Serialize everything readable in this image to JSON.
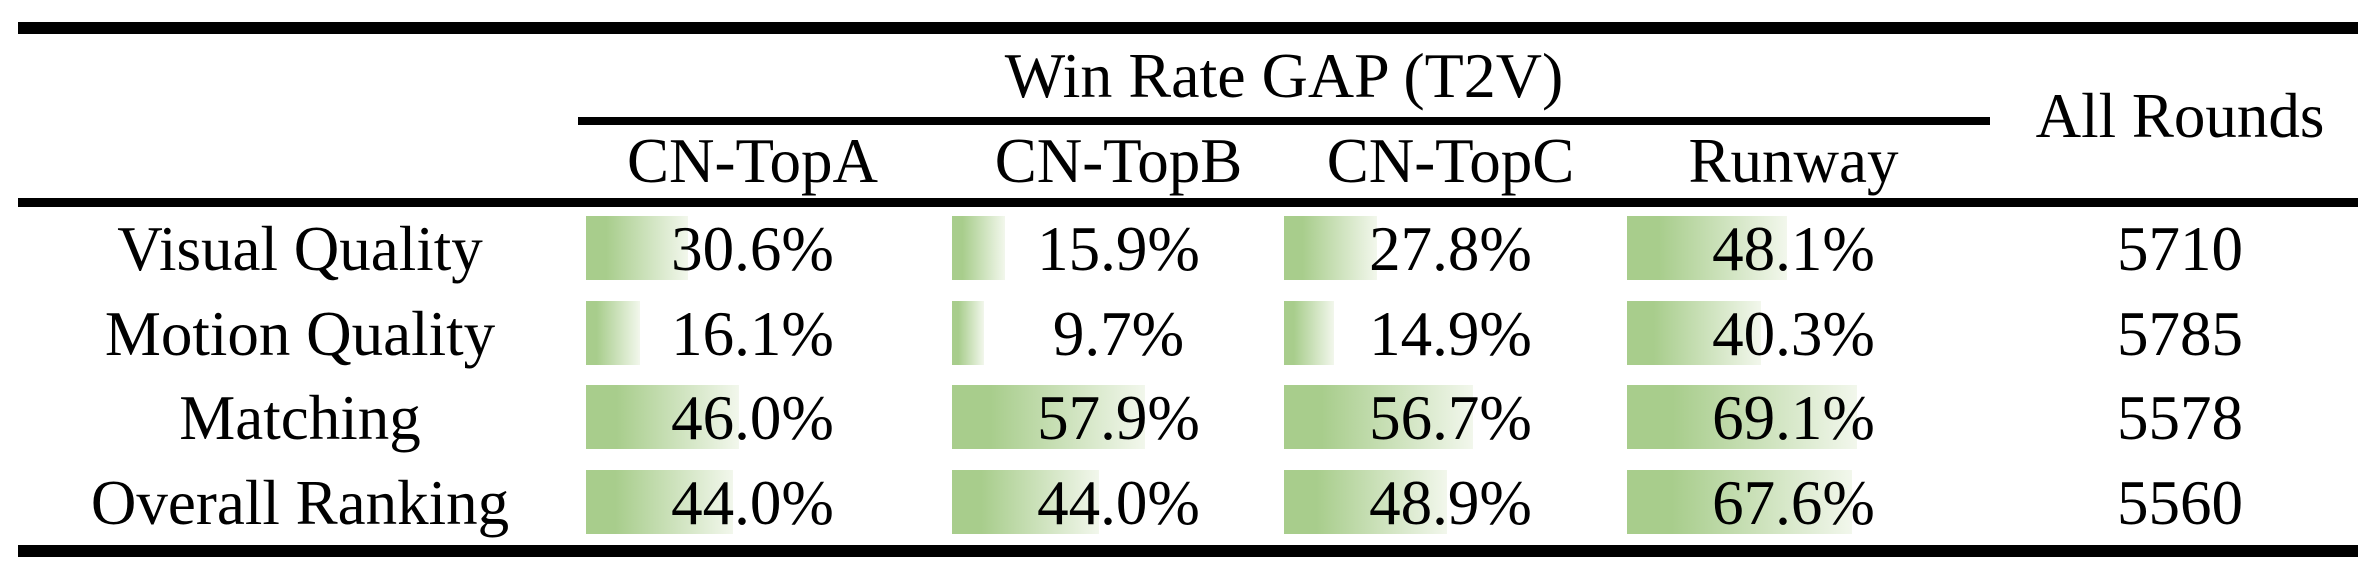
{
  "chart_data": {
    "type": "table",
    "title": "Win Rate GAP (T2V)",
    "extra_column": "All Rounds",
    "columns": [
      "CN-TopA",
      "CN-TopB",
      "CN-TopC",
      "Runway"
    ],
    "rows": [
      {
        "label": "Visual Quality",
        "values": [
          30.6,
          15.9,
          27.8,
          48.1
        ],
        "all_rounds": "5710"
      },
      {
        "label": "Motion Quality",
        "values": [
          16.1,
          9.7,
          14.9,
          40.3
        ],
        "all_rounds": "5785"
      },
      {
        "label": "Matching",
        "values": [
          46.0,
          57.9,
          56.7,
          69.1
        ],
        "all_rounds": "5578"
      },
      {
        "label": "Overall Ranking",
        "values": [
          44.0,
          44.0,
          48.9,
          67.6
        ],
        "all_rounds": "5560"
      }
    ],
    "value_suffix": "%",
    "bar": {
      "fill_start": "#a8cd8c",
      "fill_end": "#f2f7ec",
      "scale": "bar width equals value percent of cell width"
    },
    "layout": {
      "legend": "none",
      "grid": "off",
      "bars_anchored": "left",
      "values_range": [
        0,
        100
      ]
    }
  }
}
